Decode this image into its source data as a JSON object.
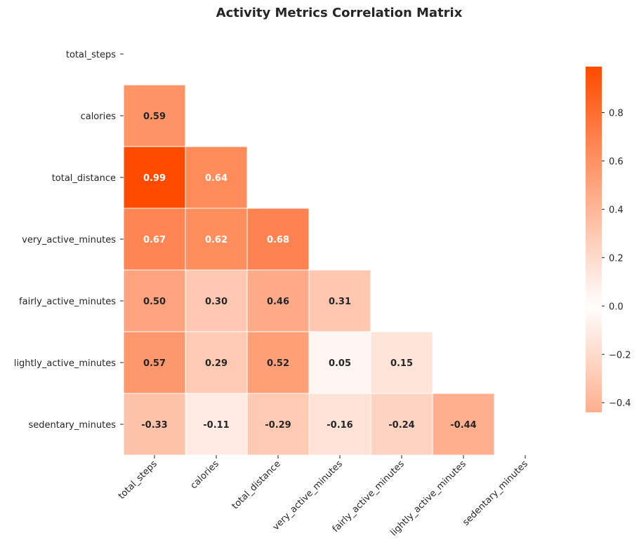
{
  "chart_data": {
    "type": "heatmap",
    "title": "Activity Metrics Correlation Matrix",
    "labels": [
      "total_steps",
      "calories",
      "total_distance",
      "very_active_minutes",
      "fairly_active_minutes",
      "lightly_active_minutes",
      "sedentary_minutes"
    ],
    "mask": "upper-triangle-including-diagonal",
    "cells": [
      {
        "row": 1,
        "col": 0,
        "value": 0.59,
        "label": "0.59"
      },
      {
        "row": 2,
        "col": 0,
        "value": 0.99,
        "label": "0.99"
      },
      {
        "row": 2,
        "col": 1,
        "value": 0.64,
        "label": "0.64"
      },
      {
        "row": 3,
        "col": 0,
        "value": 0.67,
        "label": "0.67"
      },
      {
        "row": 3,
        "col": 1,
        "value": 0.62,
        "label": "0.62"
      },
      {
        "row": 3,
        "col": 2,
        "value": 0.68,
        "label": "0.68"
      },
      {
        "row": 4,
        "col": 0,
        "value": 0.5,
        "label": "0.50"
      },
      {
        "row": 4,
        "col": 1,
        "value": 0.3,
        "label": "0.30"
      },
      {
        "row": 4,
        "col": 2,
        "value": 0.46,
        "label": "0.46"
      },
      {
        "row": 4,
        "col": 3,
        "value": 0.31,
        "label": "0.31"
      },
      {
        "row": 5,
        "col": 0,
        "value": 0.57,
        "label": "0.57"
      },
      {
        "row": 5,
        "col": 1,
        "value": 0.29,
        "label": "0.29"
      },
      {
        "row": 5,
        "col": 2,
        "value": 0.52,
        "label": "0.52"
      },
      {
        "row": 5,
        "col": 3,
        "value": 0.05,
        "label": "0.05"
      },
      {
        "row": 5,
        "col": 4,
        "value": 0.15,
        "label": "0.15"
      },
      {
        "row": 6,
        "col": 0,
        "value": -0.33,
        "label": "-0.33"
      },
      {
        "row": 6,
        "col": 1,
        "value": -0.11,
        "label": "-0.11"
      },
      {
        "row": 6,
        "col": 2,
        "value": -0.29,
        "label": "-0.29"
      },
      {
        "row": 6,
        "col": 3,
        "value": -0.16,
        "label": "-0.16"
      },
      {
        "row": 6,
        "col": 4,
        "value": -0.24,
        "label": "-0.24"
      },
      {
        "row": 6,
        "col": 5,
        "value": -0.44,
        "label": "-0.44"
      }
    ],
    "colorbar": {
      "vmin": -0.44,
      "vmax": 0.99,
      "center": 0,
      "ticks": [
        -0.4,
        -0.2,
        0.0,
        0.2,
        0.4,
        0.6,
        0.8
      ],
      "tick_labels": [
        "−0.4",
        "−0.2",
        "0.0",
        "0.2",
        "0.4",
        "0.6",
        "0.8"
      ]
    },
    "colors": {
      "max": "#ff4b00",
      "center": "#ffffff",
      "text_dark": "#262626",
      "text_light": "#ffffff",
      "cell_border": "#ffffff"
    }
  }
}
